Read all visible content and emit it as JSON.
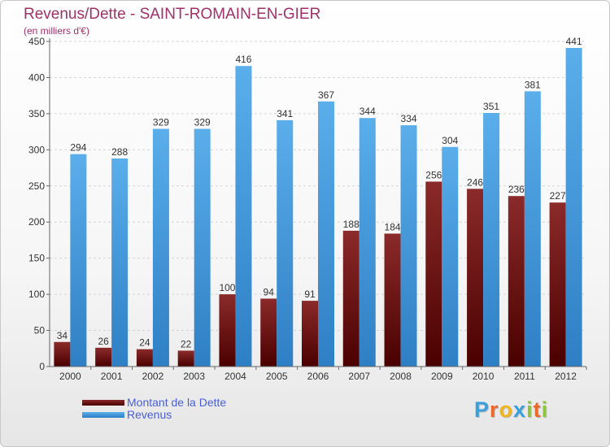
{
  "header": {
    "title": "Revenus/Dette - SAINT-ROMAIN-EN-GIER",
    "subtitle": "(en milliers d'€)"
  },
  "chart_data": {
    "type": "bar",
    "categories": [
      "2000",
      "2001",
      "2002",
      "2003",
      "2004",
      "2005",
      "2006",
      "2007",
      "2008",
      "2009",
      "2010",
      "2011",
      "2012"
    ],
    "series": [
      {
        "name": "Montant de la Dette",
        "color": "#7a1a1a",
        "values": [
          34,
          26,
          24,
          22,
          100,
          94,
          91,
          188,
          184,
          256,
          246,
          236,
          227
        ]
      },
      {
        "name": "Revenus",
        "color": "#4a9fe0",
        "values": [
          294,
          288,
          329,
          329,
          416,
          341,
          367,
          344,
          334,
          304,
          351,
          381,
          441
        ]
      }
    ],
    "title": "Revenus/Dette - SAINT-ROMAIN-EN-GIER",
    "subtitle": "(en milliers d'€)",
    "ylim": [
      0,
      450
    ],
    "yticks": [
      0,
      50,
      100,
      150,
      200,
      250,
      300,
      350,
      400,
      450
    ],
    "grid": true,
    "legend": "bottom-left"
  },
  "legend": {
    "items": [
      {
        "label": "Montant de la Dette",
        "color": "#7a1a1a"
      },
      {
        "label": "Revenus",
        "color": "#4a9fe0"
      }
    ]
  },
  "brand": {
    "letters": [
      "P",
      "r",
      "o",
      "x",
      "i",
      "t",
      "i"
    ],
    "colors": [
      "#3aa0dc",
      "#e8692a",
      "#f1b61c",
      "#3aa0dc",
      "#8cc63f",
      "#e8692a",
      "#8cc63f"
    ]
  }
}
